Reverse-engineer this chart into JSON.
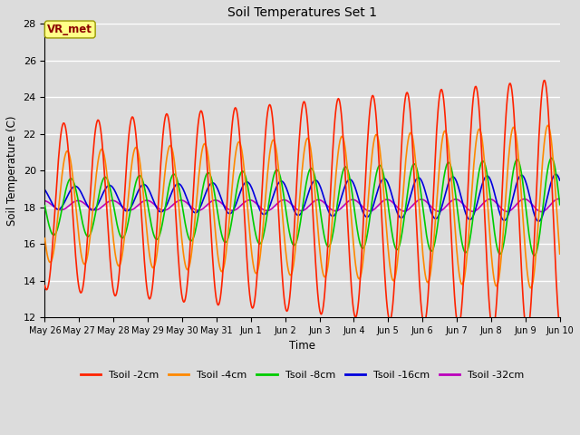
{
  "title": "Soil Temperatures Set 1",
  "xlabel": "Time",
  "ylabel": "Soil Temperature (C)",
  "ylim": [
    12,
    28
  ],
  "yticks": [
    12,
    14,
    16,
    18,
    20,
    22,
    24,
    26,
    28
  ],
  "background_color": "#dcdcdc",
  "plot_bg_color": "#dcdcdc",
  "annotation_text": "VR_met",
  "annotation_box_color": "#ffff88",
  "annotation_text_color": "#8b0000",
  "series": [
    {
      "label": "Tsoil -2cm",
      "color": "#ff2200"
    },
    {
      "label": "Tsoil -4cm",
      "color": "#ff8800"
    },
    {
      "label": "Tsoil -8cm",
      "color": "#00cc00"
    },
    {
      "label": "Tsoil -16cm",
      "color": "#0000dd"
    },
    {
      "label": "Tsoil -32cm",
      "color": "#bb00bb"
    }
  ],
  "xtick_labels": [
    "May 26",
    "May 27",
    "May 28",
    "May 29",
    "May 30",
    "May 31",
    "Jun 1",
    "Jun 2",
    "Jun 3",
    "Jun 4",
    "Jun 5",
    "Jun 6",
    "Jun 7",
    "Jun 8",
    "Jun 9",
    "Jun 10"
  ],
  "n_days": 15,
  "pts_per_day": 48
}
